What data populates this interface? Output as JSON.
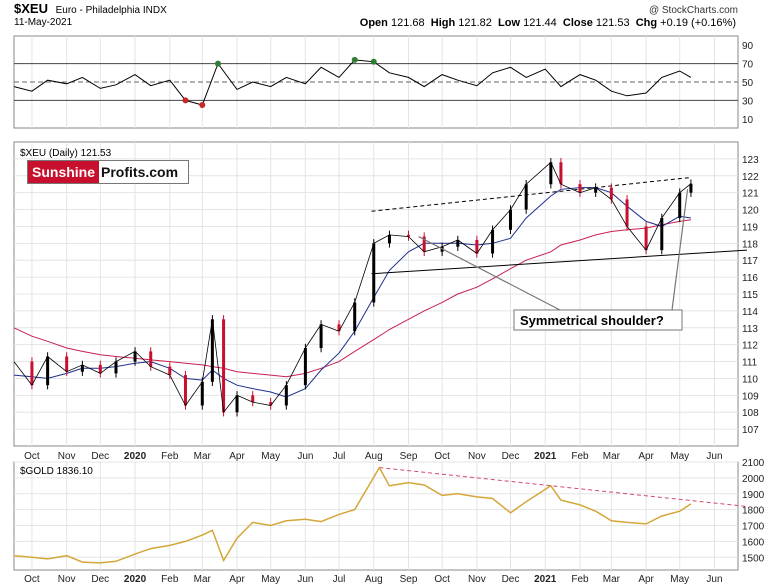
{
  "header": {
    "symbol": "$XEU",
    "name": "Euro - Philadelphia INDX",
    "date": "11-May-2021",
    "copyright": "@ StockCharts.com",
    "stats": [
      {
        "label": "Open",
        "value": "121.68"
      },
      {
        "label": "High",
        "value": "121.82"
      },
      {
        "label": "Low",
        "value": "121.44"
      },
      {
        "label": "Close",
        "value": "121.53"
      },
      {
        "label": "Chg",
        "value": "+0.19 (+0.16%)"
      }
    ]
  },
  "price_panel": {
    "legend": "$XEU (Daily) 121.53",
    "annotation": "Symmetrical shoulder?"
  },
  "gold_panel": {
    "legend": "$GOLD 1836.10"
  },
  "logo": {
    "part1": "Sunshine",
    "part2": "Profits.com"
  },
  "colors": {
    "price_up": "#000000",
    "price_down": "#c8102e",
    "ma_blue": "#1f2f8f",
    "ma_red": "#c8204f",
    "gold_line": "#d4a73a",
    "gold_trend": "#d44a6a",
    "rsi_line": "#000000",
    "rsi_overbought": "#2e7d32",
    "rsi_oversold": "#c62828"
  },
  "chart_data": [
    {
      "type": "line",
      "name": "RSI",
      "ylim": [
        0,
        100
      ],
      "yticks": [
        10,
        30,
        50,
        70,
        90
      ],
      "reference_lines": [
        30,
        50,
        70
      ],
      "dates": [
        "2019-09-15",
        "2019-10-01",
        "2019-10-15",
        "2019-11-01",
        "2019-11-15",
        "2019-12-01",
        "2019-12-15",
        "2020-01-01",
        "2020-01-15",
        "2020-02-01",
        "2020-02-15",
        "2020-03-01",
        "2020-03-15",
        "2020-04-01",
        "2020-04-15",
        "2020-05-01",
        "2020-05-15",
        "2020-06-01",
        "2020-06-15",
        "2020-07-01",
        "2020-07-15",
        "2020-08-01",
        "2020-08-15",
        "2020-09-01",
        "2020-09-15",
        "2020-10-01",
        "2020-10-15",
        "2020-11-01",
        "2020-11-15",
        "2020-12-01",
        "2020-12-15",
        "2021-01-01",
        "2021-01-15",
        "2021-02-01",
        "2021-02-15",
        "2021-03-01",
        "2021-03-15",
        "2021-04-01",
        "2021-04-15",
        "2021-05-01",
        "2021-05-11"
      ],
      "values": [
        45,
        40,
        52,
        48,
        55,
        43,
        47,
        58,
        46,
        52,
        30,
        25,
        70,
        42,
        50,
        45,
        55,
        48,
        66,
        55,
        74,
        72,
        60,
        55,
        45,
        58,
        52,
        46,
        60,
        66,
        55,
        64,
        45,
        58,
        52,
        40,
        35,
        38,
        55,
        62,
        55
      ]
    },
    {
      "type": "line",
      "name": "$XEU",
      "ylim": [
        106,
        124
      ],
      "yticks": [
        107,
        108,
        109,
        110,
        111,
        112,
        113,
        114,
        115,
        116,
        117,
        118,
        119,
        120,
        121,
        122,
        123
      ],
      "xticks": [
        "Oct",
        "Nov",
        "Dec",
        "2020",
        "Feb",
        "Mar",
        "Apr",
        "May",
        "Jun",
        "Jul",
        "Aug",
        "Sep",
        "Oct",
        "Nov",
        "Dec",
        "2021",
        "Feb",
        "Mar",
        "Apr",
        "May",
        "Jun"
      ],
      "dates": [
        "2019-09-15",
        "2019-10-01",
        "2019-10-15",
        "2019-11-01",
        "2019-11-15",
        "2019-12-01",
        "2019-12-15",
        "2020-01-01",
        "2020-01-15",
        "2020-02-01",
        "2020-02-15",
        "2020-03-01",
        "2020-03-10",
        "2020-03-20",
        "2020-04-01",
        "2020-04-15",
        "2020-05-01",
        "2020-05-15",
        "2020-06-01",
        "2020-06-15",
        "2020-07-01",
        "2020-07-15",
        "2020-08-01",
        "2020-08-15",
        "2020-09-01",
        "2020-09-15",
        "2020-10-01",
        "2020-10-15",
        "2020-11-01",
        "2020-11-15",
        "2020-12-01",
        "2020-12-15",
        "2021-01-06",
        "2021-01-15",
        "2021-02-01",
        "2021-02-15",
        "2021-03-01",
        "2021-03-15",
        "2021-04-01",
        "2021-04-15",
        "2021-05-01",
        "2021-05-11"
      ],
      "close": [
        111.0,
        109.6,
        111.3,
        110.4,
        110.8,
        110.3,
        111.0,
        111.6,
        110.7,
        110.2,
        108.4,
        109.8,
        113.5,
        108.0,
        109.0,
        108.6,
        108.4,
        109.6,
        111.8,
        113.2,
        112.8,
        114.5,
        118.0,
        118.5,
        118.4,
        117.5,
        117.8,
        118.2,
        117.4,
        118.8,
        120.0,
        121.5,
        122.8,
        121.5,
        121.0,
        121.3,
        120.6,
        119.0,
        117.6,
        119.5,
        121.0,
        121.53
      ],
      "ma_50": [
        110.2,
        110.1,
        110.0,
        110.3,
        110.6,
        110.6,
        110.7,
        110.9,
        111.0,
        110.6,
        110.0,
        109.9,
        110.5,
        110.0,
        109.6,
        109.4,
        109.2,
        108.9,
        109.4,
        110.5,
        111.5,
        112.8,
        114.8,
        116.4,
        117.5,
        118.0,
        118.0,
        118.0,
        117.9,
        118.0,
        118.3,
        119.5,
        120.8,
        121.2,
        121.3,
        121.3,
        121.0,
        120.2,
        119.3,
        119.0,
        119.6,
        119.5
      ],
      "ma_200": [
        113.0,
        112.5,
        112.2,
        111.8,
        111.6,
        111.4,
        111.3,
        111.2,
        111.1,
        111.0,
        110.9,
        110.8,
        110.7,
        110.6,
        110.4,
        110.3,
        110.2,
        110.1,
        110.3,
        110.6,
        111.0,
        111.6,
        112.3,
        112.9,
        113.5,
        114.0,
        114.5,
        115.0,
        115.4,
        115.9,
        116.5,
        117.0,
        117.5,
        117.9,
        118.2,
        118.5,
        118.7,
        118.8,
        118.9,
        119.1,
        119.3,
        119.4
      ],
      "trendlines": [
        {
          "style": "dashed",
          "from": [
            "2020-07-30",
            119.9
          ],
          "to": [
            "2021-05-11",
            121.9
          ]
        },
        {
          "style": "solid",
          "from": [
            "2020-07-30",
            116.2
          ],
          "to": [
            "2021-06-30",
            117.6
          ]
        }
      ]
    },
    {
      "type": "line",
      "name": "$GOLD",
      "ylim": [
        1420,
        2100
      ],
      "yticks": [
        1500,
        1600,
        1700,
        1800,
        1900,
        2000,
        2100
      ],
      "xticks": [
        "Oct",
        "Nov",
        "Dec",
        "2020",
        "Feb",
        "Mar",
        "Apr",
        "May",
        "Jun",
        "Jul",
        "Aug",
        "Sep",
        "Oct",
        "Nov",
        "Dec",
        "2021",
        "Feb",
        "Mar",
        "Apr",
        "May",
        "Jun"
      ],
      "dates": [
        "2019-09-15",
        "2019-10-01",
        "2019-10-15",
        "2019-11-01",
        "2019-11-15",
        "2019-12-01",
        "2019-12-15",
        "2020-01-01",
        "2020-01-15",
        "2020-02-01",
        "2020-02-15",
        "2020-03-01",
        "2020-03-10",
        "2020-03-20",
        "2020-04-01",
        "2020-04-15",
        "2020-05-01",
        "2020-05-15",
        "2020-06-01",
        "2020-06-15",
        "2020-07-01",
        "2020-07-15",
        "2020-08-06",
        "2020-08-15",
        "2020-09-01",
        "2020-09-15",
        "2020-10-01",
        "2020-10-15",
        "2020-11-01",
        "2020-11-15",
        "2020-12-01",
        "2020-12-15",
        "2021-01-06",
        "2021-01-15",
        "2021-02-01",
        "2021-02-15",
        "2021-03-01",
        "2021-03-15",
        "2021-04-01",
        "2021-04-15",
        "2021-05-01",
        "2021-05-11"
      ],
      "values": [
        1510,
        1500,
        1490,
        1510,
        1470,
        1465,
        1475,
        1520,
        1555,
        1575,
        1600,
        1640,
        1670,
        1480,
        1620,
        1720,
        1700,
        1730,
        1740,
        1725,
        1770,
        1800,
        2065,
        1950,
        1970,
        1955,
        1890,
        1900,
        1880,
        1870,
        1780,
        1850,
        1950,
        1860,
        1830,
        1790,
        1730,
        1720,
        1710,
        1760,
        1790,
        1836.1
      ],
      "trendline": {
        "style": "dashed",
        "from": [
          "2020-08-06",
          2065
        ],
        "to": [
          "2021-06-30",
          1820
        ]
      }
    }
  ]
}
